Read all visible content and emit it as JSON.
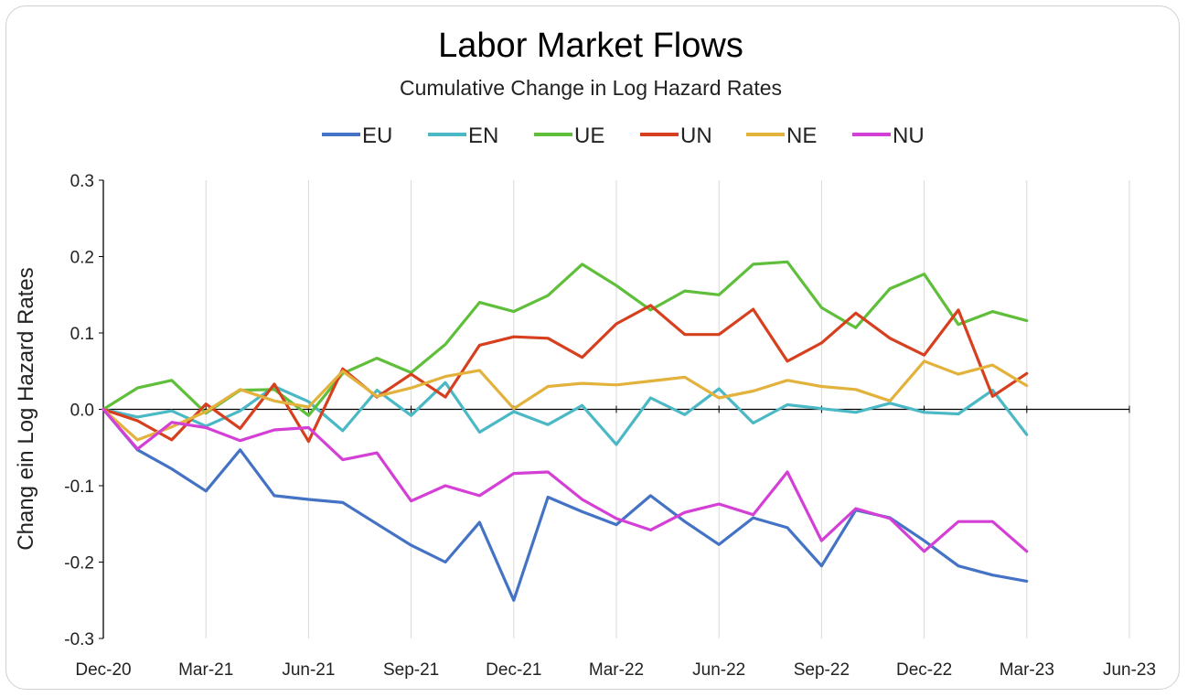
{
  "chart_data": {
    "type": "line",
    "title": "Labor Market Flows",
    "subtitle": "Cumulative Change in Log Hazard Rates",
    "ylabel": "Chang ein Log Hazard Rates",
    "xlabel": "",
    "ylim": [
      -0.3,
      0.3
    ],
    "yticks": [
      0.3,
      0.2,
      0.1,
      0.0,
      -0.1,
      -0.2,
      -0.3
    ],
    "ytick_labels": [
      "0.3",
      "0.2",
      "0.1",
      "0.0",
      "-0.1",
      "-0.2",
      "-0.3"
    ],
    "xlim": [
      "2020-12",
      "2023-06"
    ],
    "xticks": [
      "2020-12",
      "2021-03",
      "2021-06",
      "2021-09",
      "2021-12",
      "2022-03",
      "2022-06",
      "2022-09",
      "2022-12",
      "2023-03",
      "2023-06"
    ],
    "xtick_labels": [
      "Dec-20",
      "Mar-21",
      "Jun-21",
      "Sep-21",
      "Dec-21",
      "Mar-22",
      "Jun-22",
      "Sep-22",
      "Dec-22",
      "Mar-23",
      "Jun-23"
    ],
    "grid": "vertical",
    "legend": "top",
    "x": [
      "2020-12",
      "2021-01",
      "2021-02",
      "2021-03",
      "2021-04",
      "2021-05",
      "2021-06",
      "2021-07",
      "2021-08",
      "2021-09",
      "2021-10",
      "2021-11",
      "2021-12",
      "2022-01",
      "2022-02",
      "2022-03",
      "2022-04",
      "2022-05",
      "2022-06",
      "2022-07",
      "2022-08",
      "2022-09",
      "2022-10",
      "2022-11",
      "2022-12",
      "2023-01",
      "2023-02",
      "2023-03"
    ],
    "series": [
      {
        "name": "EU",
        "color": "#4472c4",
        "values": [
          0.0,
          -0.053,
          -0.078,
          -0.107,
          -0.053,
          -0.113,
          -0.118,
          -0.122,
          -0.15,
          -0.178,
          -0.2,
          -0.148,
          -0.25,
          -0.115,
          -0.134,
          -0.151,
          -0.113,
          -0.147,
          -0.177,
          -0.142,
          -0.155,
          -0.205,
          -0.132,
          -0.142,
          -0.172,
          -0.205,
          -0.217,
          -0.225
        ]
      },
      {
        "name": "EN",
        "color": "#4bb8c6",
        "values": [
          0.0,
          -0.01,
          -0.002,
          -0.022,
          -0.002,
          0.03,
          0.01,
          -0.028,
          0.025,
          -0.008,
          0.035,
          -0.03,
          -0.003,
          -0.02,
          0.005,
          -0.046,
          0.015,
          -0.007,
          0.027,
          -0.018,
          0.006,
          0.001,
          -0.004,
          0.008,
          -0.004,
          -0.006,
          0.025,
          -0.033
        ]
      },
      {
        "name": "UE",
        "color": "#5fbf3a",
        "values": [
          0.0,
          0.028,
          0.038,
          -0.005,
          0.025,
          0.026,
          -0.008,
          0.047,
          0.067,
          0.048,
          0.085,
          0.14,
          0.128,
          0.149,
          0.19,
          0.162,
          0.13,
          0.155,
          0.15,
          0.19,
          0.193,
          0.133,
          0.107,
          0.158,
          0.177,
          0.111,
          0.128,
          0.116
        ]
      },
      {
        "name": "UN",
        "color": "#d6401f",
        "values": [
          0.0,
          -0.015,
          -0.04,
          0.007,
          -0.025,
          0.033,
          -0.042,
          0.053,
          0.016,
          0.046,
          0.016,
          0.084,
          0.095,
          0.093,
          0.068,
          0.112,
          0.136,
          0.098,
          0.098,
          0.131,
          0.063,
          0.087,
          0.126,
          0.093,
          0.071,
          0.13,
          0.017,
          0.047
        ]
      },
      {
        "name": "NE",
        "color": "#e3b23c",
        "values": [
          0.0,
          -0.04,
          -0.023,
          -0.003,
          0.026,
          0.011,
          0.003,
          0.05,
          0.017,
          0.028,
          0.043,
          0.051,
          0.001,
          0.03,
          0.034,
          0.032,
          0.037,
          0.042,
          0.015,
          0.024,
          0.038,
          0.03,
          0.026,
          0.011,
          0.063,
          0.046,
          0.058,
          0.031
        ]
      },
      {
        "name": "NU",
        "color": "#d43fd6",
        "values": [
          0.0,
          -0.052,
          -0.017,
          -0.024,
          -0.041,
          -0.027,
          -0.024,
          -0.066,
          -0.057,
          -0.12,
          -0.1,
          -0.113,
          -0.084,
          -0.082,
          -0.118,
          -0.143,
          -0.158,
          -0.135,
          -0.124,
          -0.138,
          -0.082,
          -0.172,
          -0.13,
          -0.143,
          -0.186,
          -0.147,
          -0.147,
          -0.186
        ]
      }
    ]
  }
}
